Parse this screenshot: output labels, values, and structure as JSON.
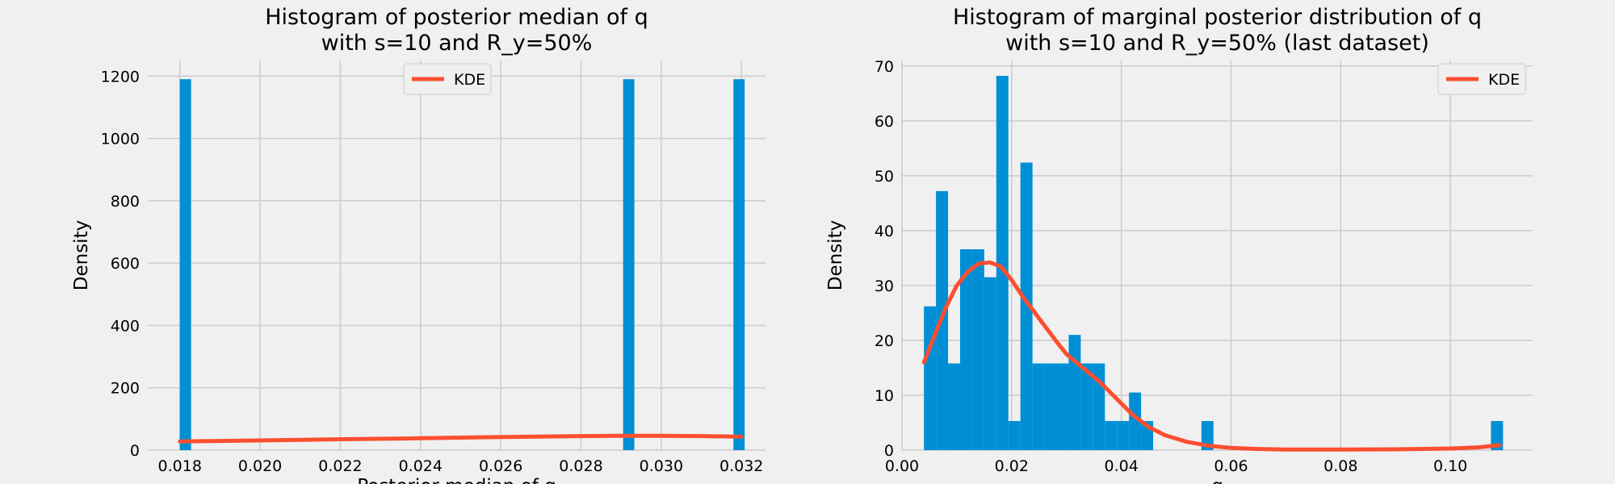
{
  "chart_data": [
    {
      "type": "bar",
      "title": [
        "Histogram of posterior median of q",
        "with s=10 and R_y=50%"
      ],
      "xlabel": "Posterior median of q",
      "ylabel": "Density",
      "xlim": [
        0.0172,
        0.0326
      ],
      "ylim": [
        0,
        1250
      ],
      "xticks": [
        "0.018",
        "0.020",
        "0.022",
        "0.024",
        "0.026",
        "0.028",
        "0.030",
        "0.032"
      ],
      "yticks": [
        "0",
        "200",
        "400",
        "600",
        "800",
        "1000",
        "1200"
      ],
      "grid": true,
      "legend": {
        "position": "top-center",
        "entries": [
          "KDE"
        ]
      },
      "bars": [
        {
          "x0": 0.018,
          "x1": 0.01828,
          "value": 1190
        },
        {
          "x0": 0.02905,
          "x1": 0.02933,
          "value": 1190
        },
        {
          "x0": 0.0318,
          "x1": 0.03208,
          "value": 1190
        }
      ],
      "kde": {
        "name": "KDE",
        "x": [
          0.018,
          0.02,
          0.022,
          0.024,
          0.026,
          0.028,
          0.029,
          0.03,
          0.031,
          0.032
        ],
        "y": [
          28,
          31,
          35,
          38,
          42,
          45,
          46,
          46,
          45,
          43
        ]
      },
      "colors": {
        "bars": "#008fd5",
        "kde": "#fc4f30"
      }
    },
    {
      "type": "bar",
      "title": [
        "Histogram of marginal posterior distribution of q",
        "with s=10 and R_y=50% (last dataset)"
      ],
      "xlabel": "q",
      "ylabel": "Density",
      "xlim": [
        0.0,
        0.115
      ],
      "ylim": [
        0,
        71
      ],
      "xticks": [
        "0.00",
        "0.02",
        "0.04",
        "0.06",
        "0.08",
        "0.10"
      ],
      "yticks": [
        "0",
        "10",
        "20",
        "30",
        "40",
        "50",
        "60",
        "70"
      ],
      "grid": true,
      "legend": {
        "position": "top-right",
        "entries": [
          "KDE"
        ]
      },
      "bars": [
        {
          "x0": 0.004,
          "x1": 0.0062,
          "value": 26.2
        },
        {
          "x0": 0.0062,
          "x1": 0.0084,
          "value": 47.2
        },
        {
          "x0": 0.0084,
          "x1": 0.0106,
          "value": 15.8
        },
        {
          "x0": 0.0106,
          "x1": 0.0128,
          "value": 36.6
        },
        {
          "x0": 0.0128,
          "x1": 0.015,
          "value": 36.6
        },
        {
          "x0": 0.015,
          "x1": 0.0172,
          "value": 31.5
        },
        {
          "x0": 0.0172,
          "x1": 0.0194,
          "value": 68.2
        },
        {
          "x0": 0.0194,
          "x1": 0.0216,
          "value": 5.3
        },
        {
          "x0": 0.0216,
          "x1": 0.0238,
          "value": 52.4
        },
        {
          "x0": 0.0238,
          "x1": 0.026,
          "value": 15.8
        },
        {
          "x0": 0.026,
          "x1": 0.0282,
          "value": 15.8
        },
        {
          "x0": 0.0282,
          "x1": 0.0304,
          "value": 15.8
        },
        {
          "x0": 0.0304,
          "x1": 0.0326,
          "value": 21.0
        },
        {
          "x0": 0.0326,
          "x1": 0.0348,
          "value": 15.8
        },
        {
          "x0": 0.0348,
          "x1": 0.037,
          "value": 15.8
        },
        {
          "x0": 0.037,
          "x1": 0.0392,
          "value": 5.3
        },
        {
          "x0": 0.0392,
          "x1": 0.0414,
          "value": 5.3
        },
        {
          "x0": 0.0414,
          "x1": 0.0436,
          "value": 10.5
        },
        {
          "x0": 0.0436,
          "x1": 0.0458,
          "value": 5.3
        },
        {
          "x0": 0.0546,
          "x1": 0.0568,
          "value": 5.3
        },
        {
          "x0": 0.1074,
          "x1": 0.1096,
          "value": 5.3
        }
      ],
      "kde": {
        "name": "KDE",
        "x": [
          0.004,
          0.006,
          0.008,
          0.01,
          0.012,
          0.014,
          0.016,
          0.018,
          0.02,
          0.022,
          0.025,
          0.028,
          0.03,
          0.033,
          0.036,
          0.039,
          0.042,
          0.045,
          0.048,
          0.052,
          0.056,
          0.06,
          0.065,
          0.07,
          0.08,
          0.09,
          0.1,
          0.105,
          0.109
        ],
        "y": [
          16,
          21,
          26,
          30,
          32.5,
          34,
          34.2,
          33.5,
          31,
          28,
          24,
          20,
          17.5,
          15,
          12.5,
          9.5,
          6.5,
          4.2,
          2.7,
          1.5,
          0.8,
          0.4,
          0.2,
          0.1,
          0.1,
          0.15,
          0.3,
          0.5,
          0.9
        ]
      },
      "colors": {
        "bars": "#008fd5",
        "kde": "#fc4f30"
      }
    }
  ]
}
